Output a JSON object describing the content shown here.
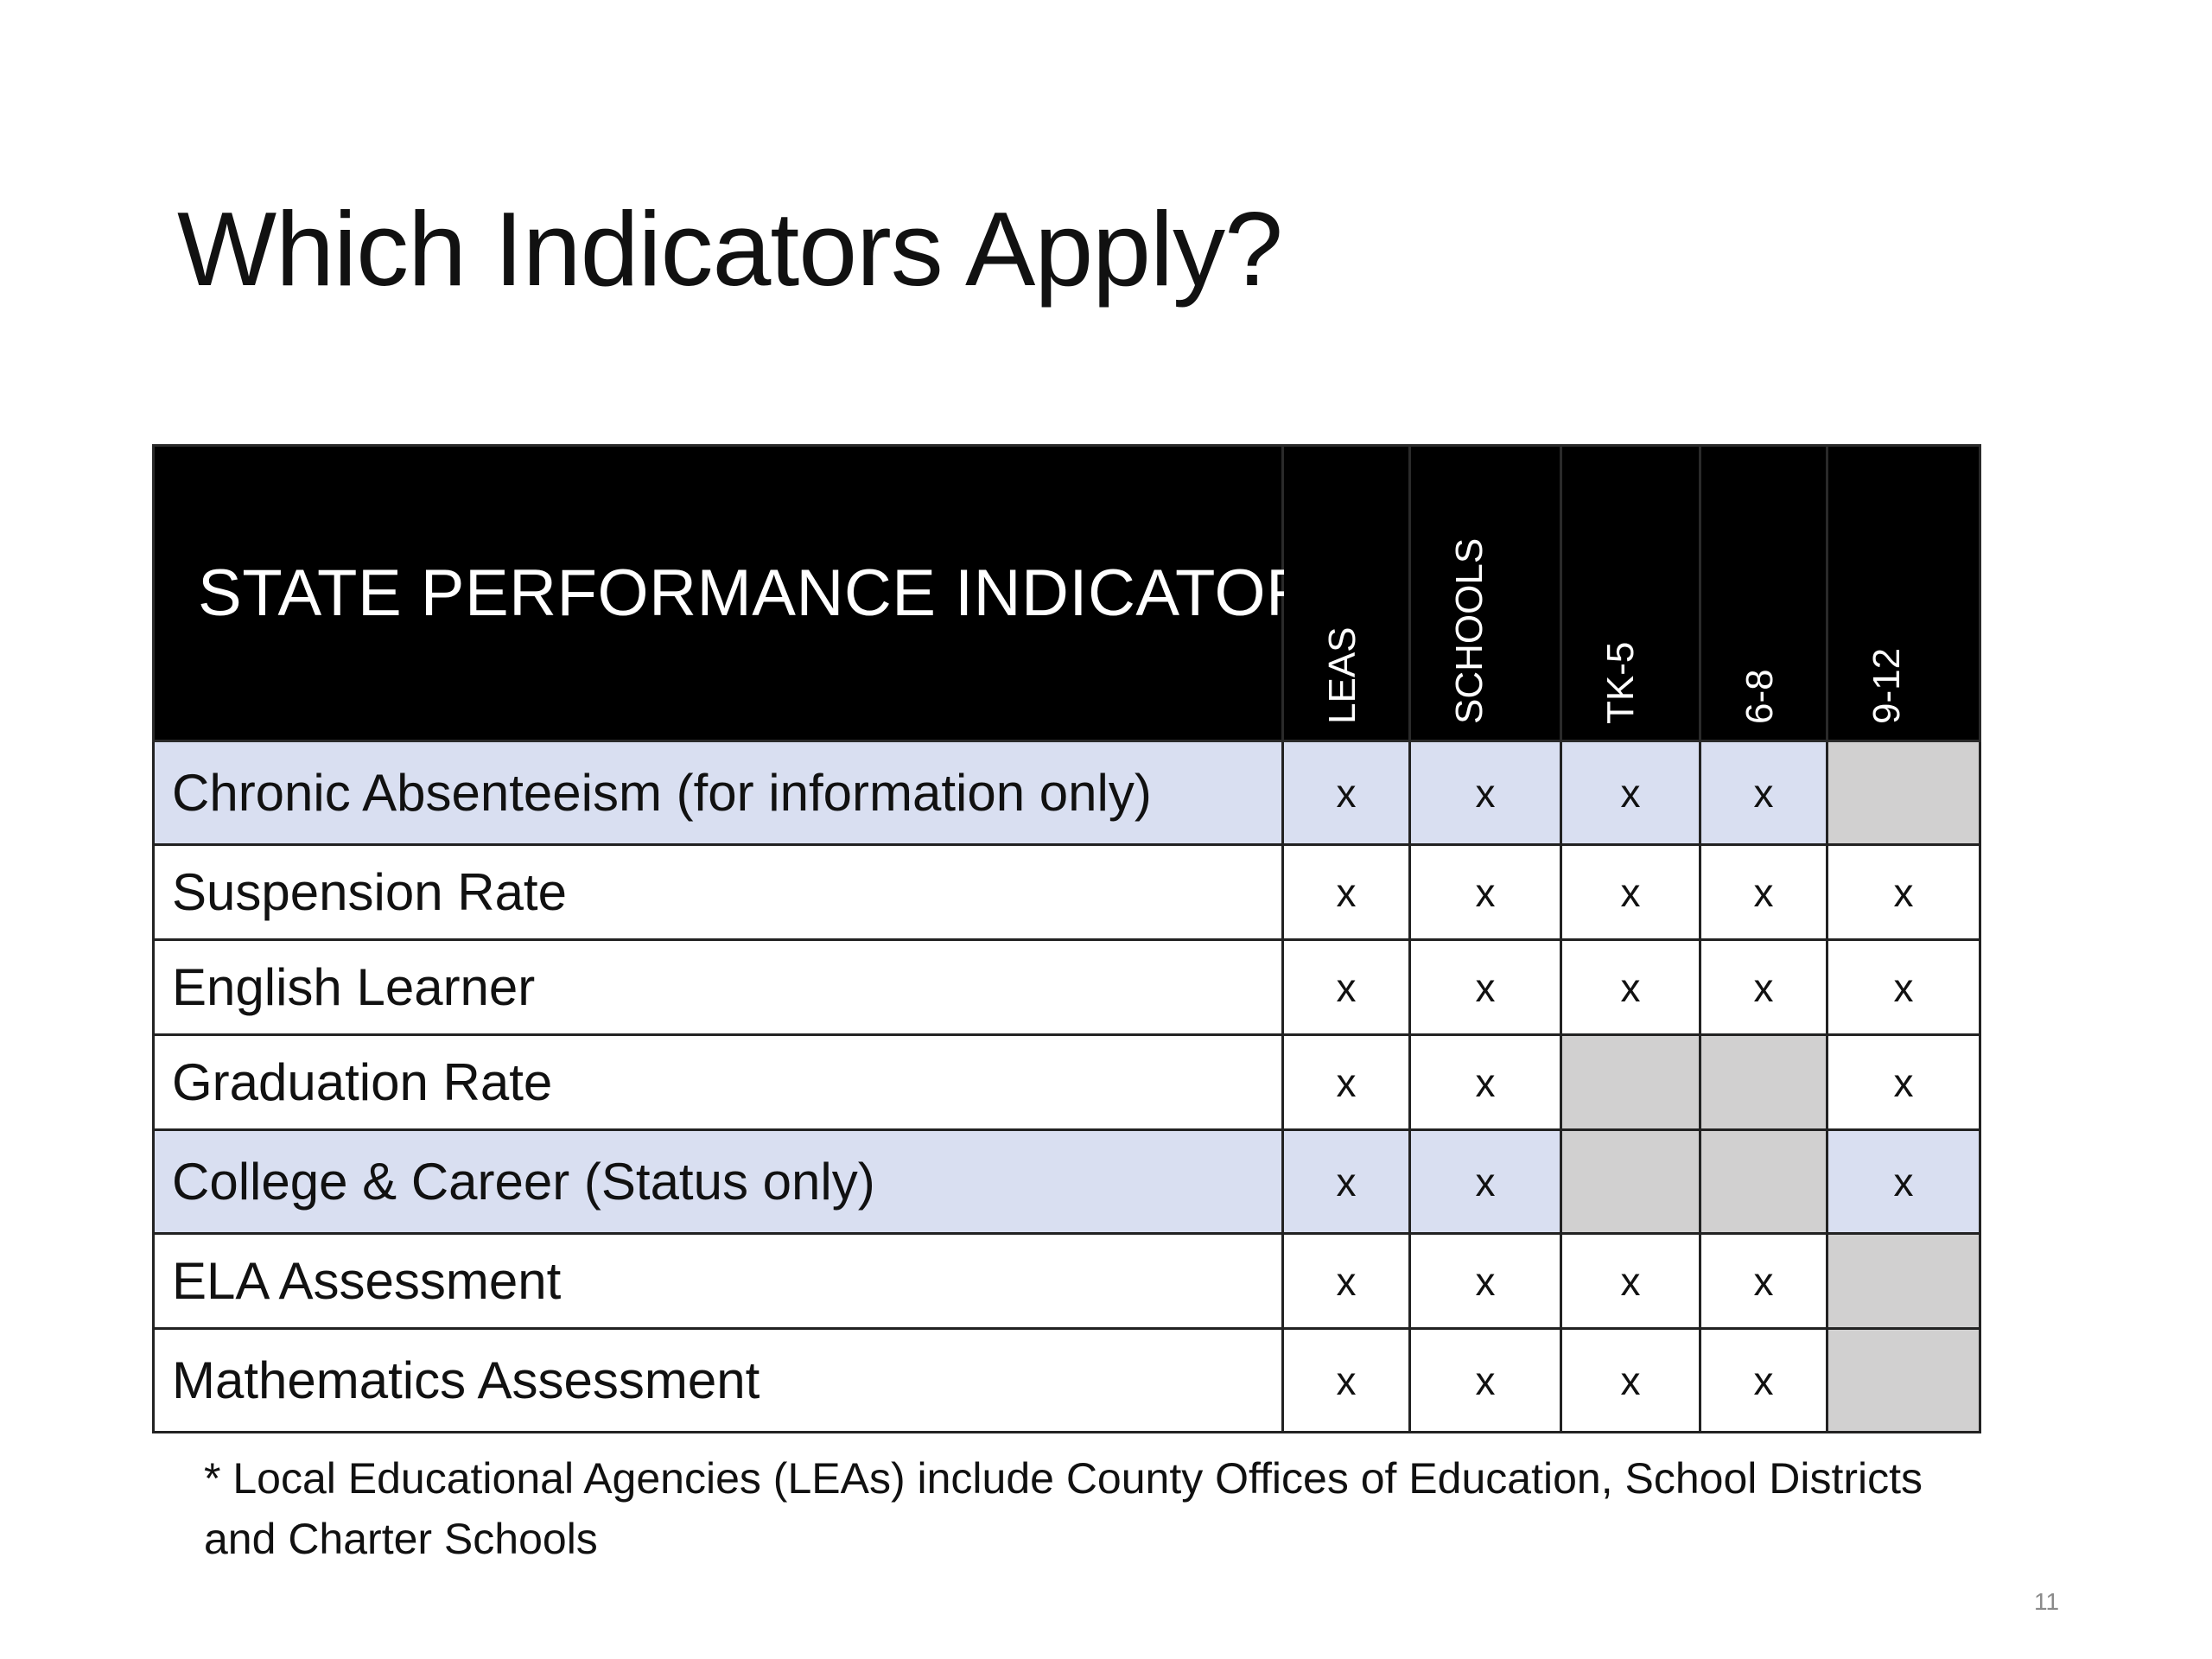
{
  "title": "Which Indicators Apply?",
  "table": {
    "header_label": "STATE PERFORMANCE INDICATORS",
    "columns": [
      "LEAS",
      "SCHOOLS",
      "TK-5",
      "6-8",
      "9-12"
    ],
    "rows": [
      {
        "label": "Chronic Absenteeism (for information only)",
        "cells": [
          "x",
          "x",
          "x",
          "x",
          ""
        ],
        "shaded": true
      },
      {
        "label": "Suspension Rate",
        "cells": [
          "x",
          "x",
          "x",
          "x",
          "x"
        ],
        "shaded": false
      },
      {
        "label": "English Learner",
        "cells": [
          "x",
          "x",
          "x",
          "x",
          "x"
        ],
        "shaded": false
      },
      {
        "label": "Graduation Rate",
        "cells": [
          "x",
          "x",
          "",
          "",
          "x"
        ],
        "shaded": false
      },
      {
        "label": "College & Career (Status only)",
        "cells": [
          "x",
          "x",
          "",
          "",
          "x"
        ],
        "shaded": true
      },
      {
        "label": "ELA Assessment",
        "cells": [
          "x",
          "x",
          "x",
          "x",
          ""
        ],
        "shaded": false
      },
      {
        "label": "Mathematics Assessment",
        "cells": [
          "x",
          "x",
          "x",
          "x",
          ""
        ],
        "shaded": false
      }
    ]
  },
  "footnote": "* Local Educational Agencies (LEAs) include County Offices of Education, School Districts and Charter Schools",
  "page_number": "11",
  "colors": {
    "header_background": "#000000",
    "header_text": "#ffffff",
    "highlight_row": "#d9dff1",
    "not_applicable_cell": "#d1d0d0"
  }
}
